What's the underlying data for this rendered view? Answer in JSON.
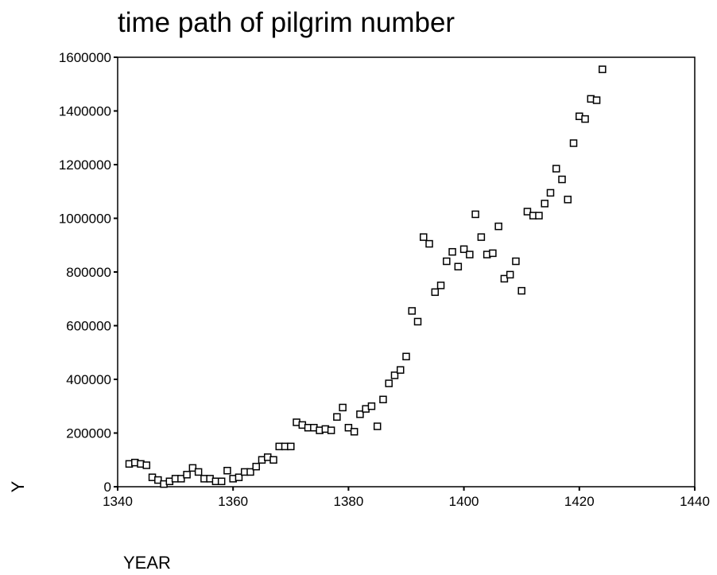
{
  "chart_data": {
    "type": "scatter",
    "title": "time path of pilgrim number",
    "x_label": "YEAR",
    "y_label": "Y",
    "x": [
      1342,
      1343,
      1344,
      1345,
      1346,
      1347,
      1348,
      1349,
      1350,
      1351,
      1352,
      1353,
      1354,
      1355,
      1356,
      1357,
      1358,
      1359,
      1360,
      1361,
      1362,
      1363,
      1364,
      1365,
      1366,
      1367,
      1368,
      1369,
      1370,
      1371,
      1372,
      1373,
      1374,
      1375,
      1376,
      1377,
      1378,
      1379,
      1380,
      1381,
      1382,
      1383,
      1384,
      1385,
      1386,
      1387,
      1388,
      1389,
      1390,
      1391,
      1392,
      1393,
      1394,
      1395,
      1396,
      1397,
      1398,
      1399,
      1400,
      1401,
      1402,
      1403,
      1404,
      1405,
      1406,
      1407,
      1408,
      1409,
      1410,
      1411,
      1412,
      1413,
      1414,
      1415,
      1416,
      1417,
      1418,
      1419,
      1420,
      1421,
      1422,
      1423,
      1424
    ],
    "values": [
      85000,
      90000,
      85000,
      80000,
      35000,
      25000,
      10000,
      20000,
      30000,
      30000,
      45000,
      70000,
      55000,
      30000,
      30000,
      20000,
      20000,
      60000,
      30000,
      35000,
      55000,
      55000,
      75000,
      100000,
      110000,
      100000,
      150000,
      150000,
      150000,
      240000,
      230000,
      220000,
      220000,
      210000,
      215000,
      210000,
      260000,
      295000,
      220000,
      205000,
      270000,
      290000,
      300000,
      225000,
      325000,
      385000,
      415000,
      435000,
      485000,
      655000,
      615000,
      930000,
      905000,
      725000,
      750000,
      840000,
      875000,
      820000,
      885000,
      865000,
      1015000,
      930000,
      865000,
      870000,
      970000,
      775000,
      790000,
      840000,
      730000,
      1025000,
      1010000,
      1010000,
      1055000,
      1095000,
      1185000,
      1145000,
      1070000,
      1280000,
      1380000,
      1370000,
      1445000,
      1440000,
      1555000
    ],
    "color": "#000000",
    "xlim": [
      1340,
      1440
    ],
    "xticks": [
      1340,
      1360,
      1380,
      1400,
      1420,
      1440
    ],
    "ylim": [
      0,
      1600000
    ],
    "yticks": [
      0,
      200000,
      400000,
      600000,
      800000,
      1000000,
      1200000,
      1400000,
      1600000
    ]
  }
}
